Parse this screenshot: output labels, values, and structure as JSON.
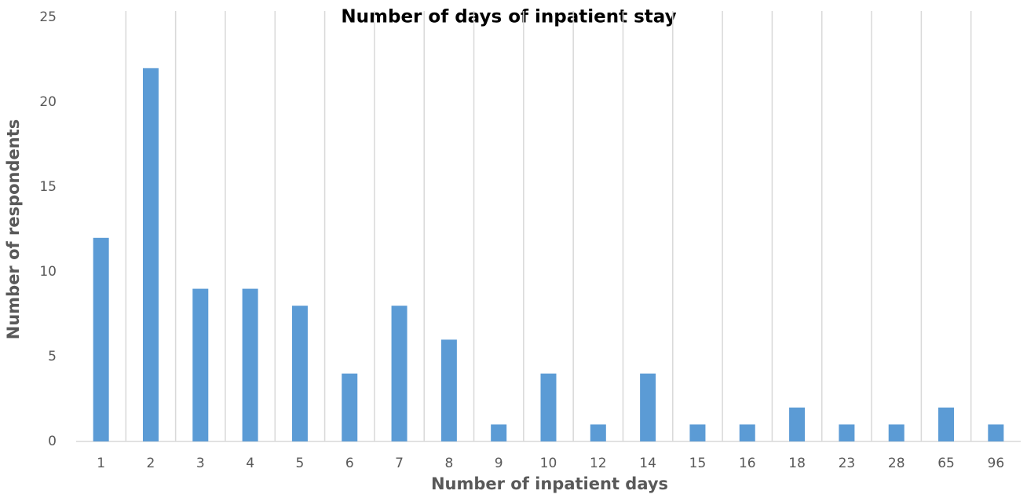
{
  "chart_data": {
    "type": "bar",
    "title": "Number of days of inpatient stay",
    "x_label": "Number of inpatient days",
    "y_label": "Number of respondents",
    "categories": [
      "1",
      "2",
      "3",
      "4",
      "5",
      "6",
      "7",
      "8",
      "9",
      "10",
      "12",
      "14",
      "15",
      "16",
      "18",
      "23",
      "28",
      "65",
      "96"
    ],
    "values": [
      12,
      22,
      9,
      9,
      8,
      4,
      8,
      6,
      1,
      4,
      1,
      4,
      1,
      1,
      2,
      1,
      1,
      2,
      1
    ],
    "color": "#5b9bd5",
    "ylim": [
      0,
      25
    ],
    "yticks": [
      0,
      5,
      10,
      15,
      20,
      25
    ],
    "grid": "x"
  }
}
